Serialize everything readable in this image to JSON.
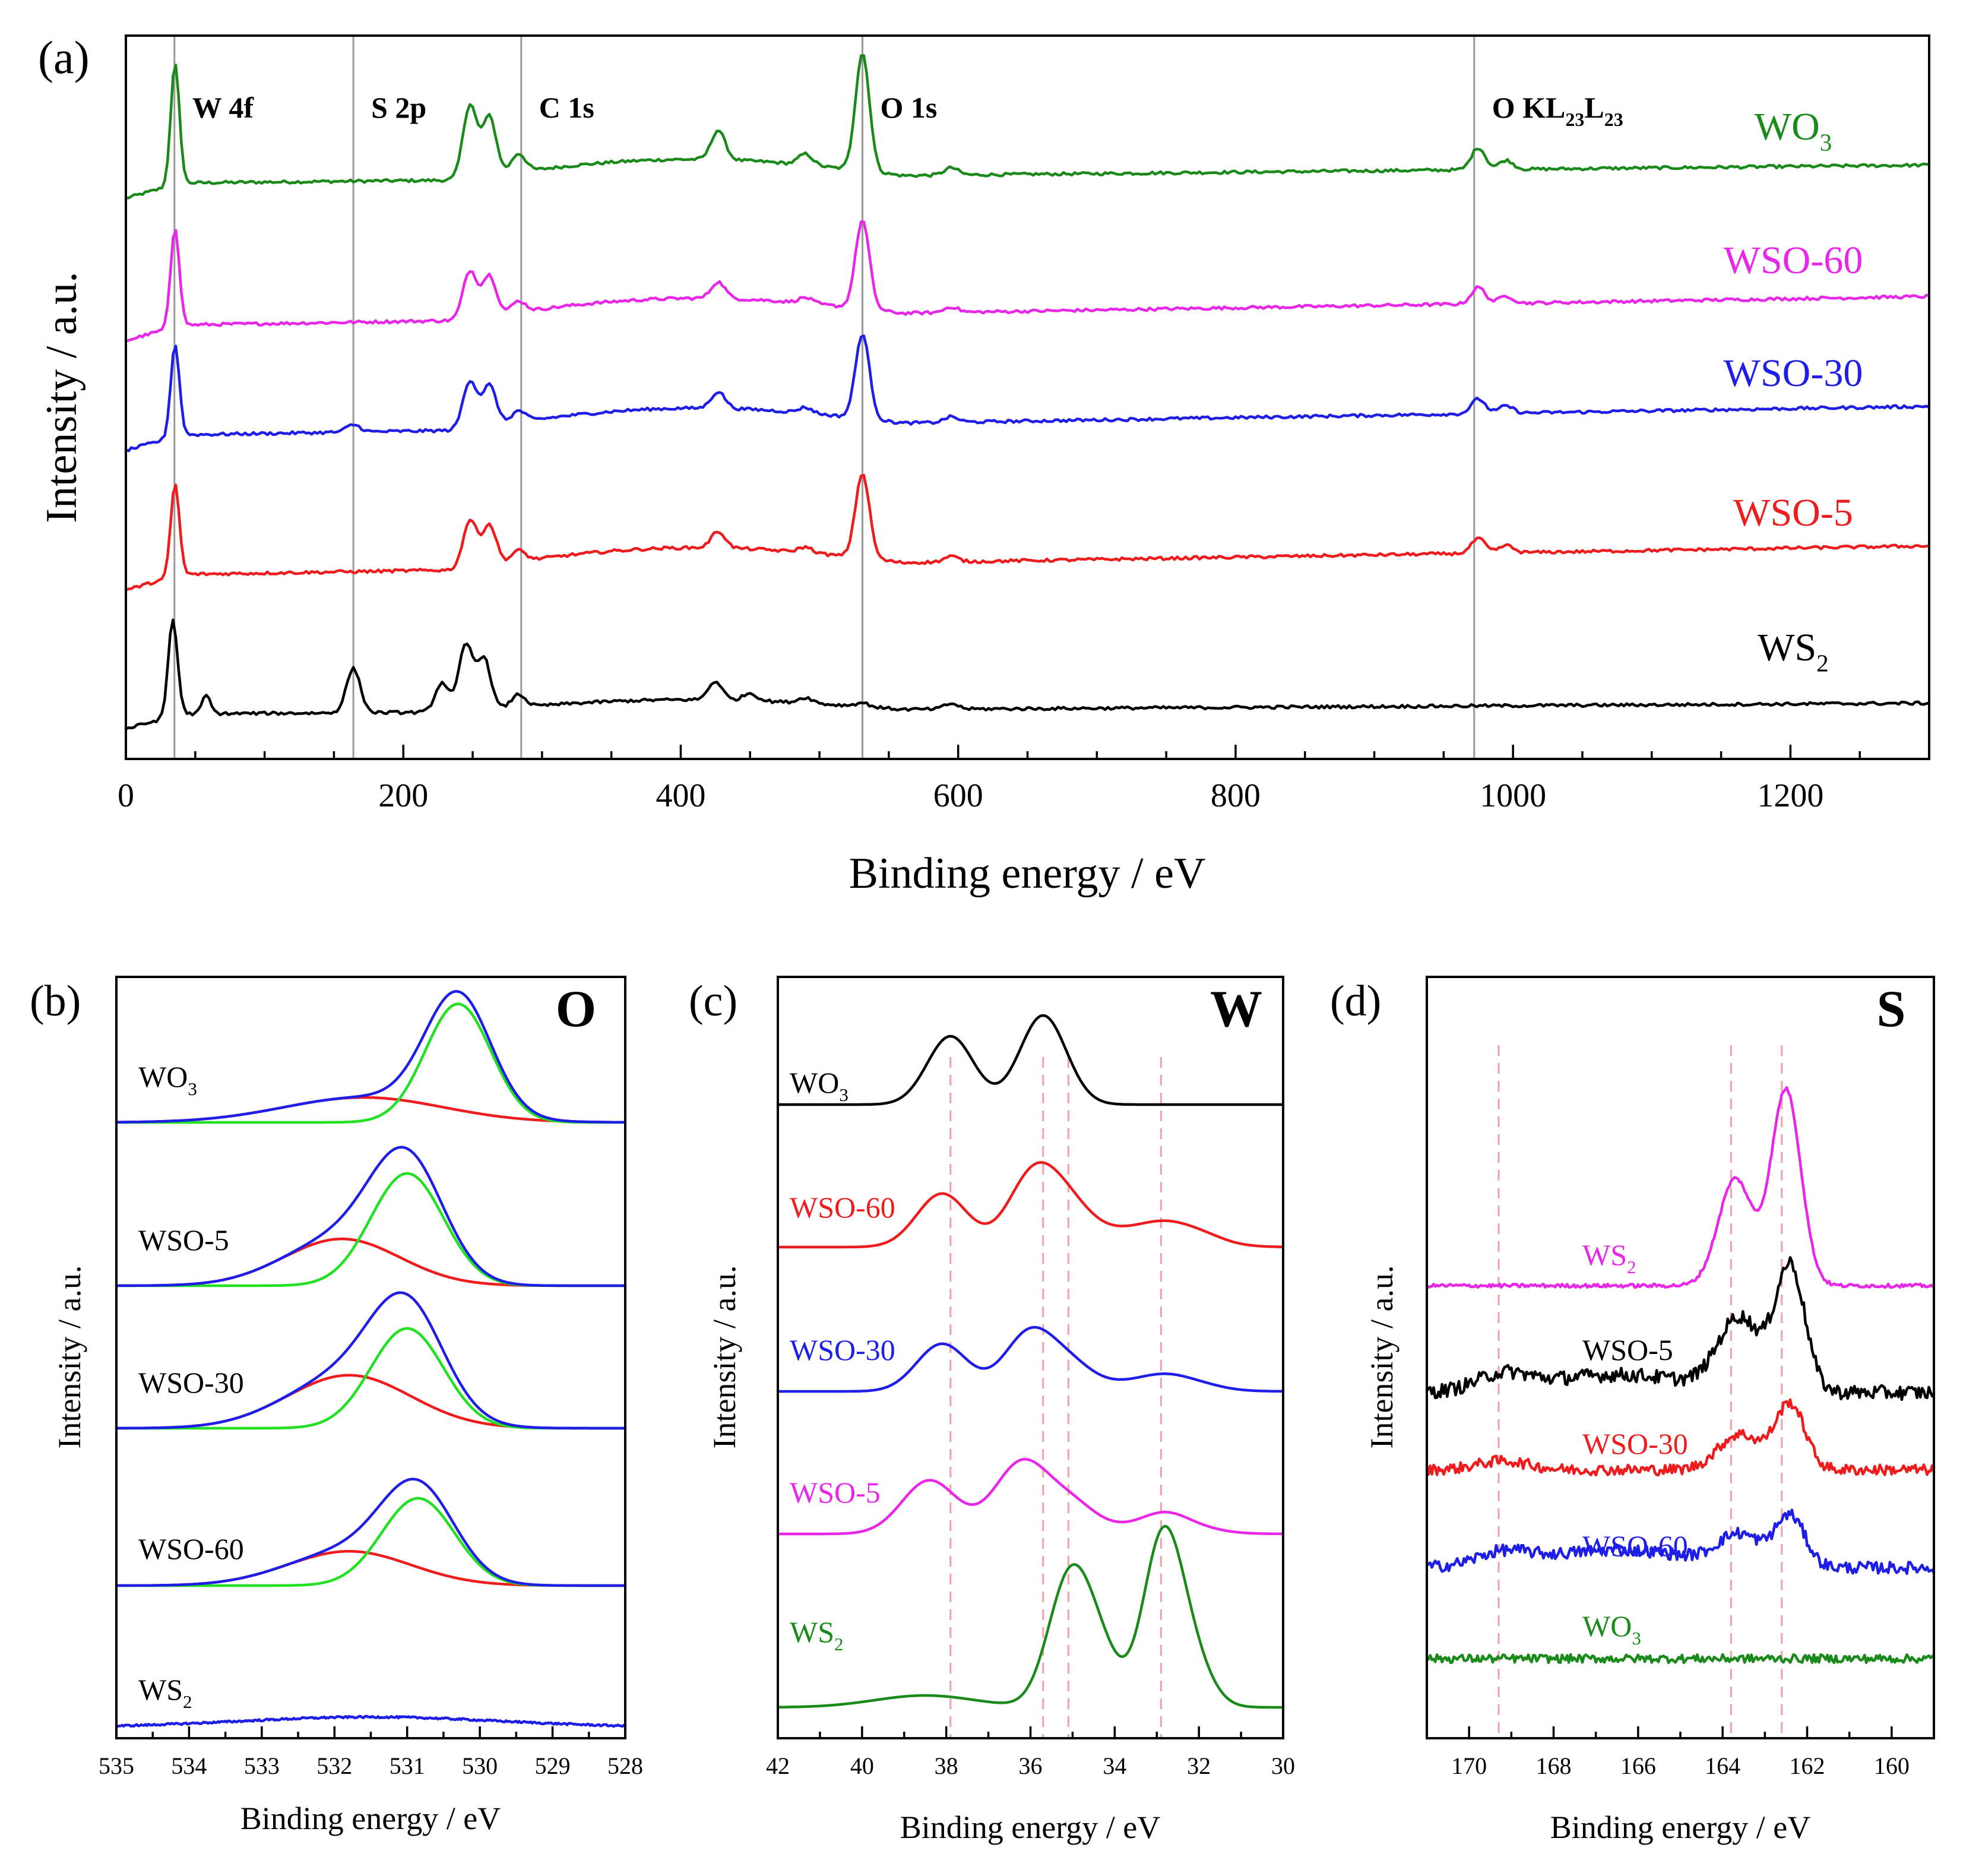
{
  "panels": {
    "a": {
      "label": "(a)",
      "title": "",
      "xlabel": "Binding energy / eV",
      "ylabel": "Intensity / a.u.",
      "element_markers": [
        {
          "x": 35,
          "label": "W 4f"
        },
        {
          "x": 164,
          "label": "S 2p"
        },
        {
          "x": 285,
          "label": "C 1s"
        },
        {
          "x": 531,
          "label": "O 1s"
        },
        {
          "x": 972,
          "label": "O KL",
          "sub1": "23",
          "mid": "L",
          "sub2": "23"
        }
      ]
    },
    "b": {
      "label": "(b)",
      "element": "O",
      "xlabel": "Binding energy / eV",
      "ylabel": "Intensity / a.u."
    },
    "c": {
      "label": "(c)",
      "element": "W",
      "xlabel": "Binding energy / eV",
      "ylabel": "Intensity / a.u."
    },
    "d": {
      "label": "(d)",
      "element": "S",
      "xlabel": "Binding energy / eV",
      "ylabel": "Intensity / a.u."
    }
  },
  "chart_data": [
    {
      "id": "a",
      "type": "line",
      "title": "",
      "xlabel": "Binding energy / eV",
      "ylabel": "Intensity / a.u.",
      "xlim": [
        0,
        1300
      ],
      "xticks": [
        0,
        200,
        400,
        600,
        800,
        1000,
        1200
      ],
      "reference_lines": [
        35,
        164,
        285,
        531,
        972
      ],
      "series": [
        {
          "name": "WO3",
          "label": "WO",
          "sub": "3",
          "color": "#1a8a1a",
          "offset": 4,
          "peaks": [
            [
              35,
              2.6
            ],
            [
              37,
              0.8
            ],
            [
              248,
              2.0
            ],
            [
              262,
              1.6
            ],
            [
              283,
              0.5
            ],
            [
              427,
              0.8
            ],
            [
              490,
              0.3
            ],
            [
              531,
              3.2
            ],
            [
              595,
              0.2
            ],
            [
              975,
              0.6
            ],
            [
              995,
              0.25
            ]
          ],
          "base_start": 0.5,
          "base_end": 1.0
        },
        {
          "name": "WSO-60",
          "label": "WSO-60",
          "sub": "",
          "color": "#e827e8",
          "offset": 3,
          "peaks": [
            [
              35,
              2.2
            ],
            [
              37,
              0.6
            ],
            [
              248,
              1.3
            ],
            [
              262,
              1.1
            ],
            [
              283,
              0.3
            ],
            [
              427,
              0.45
            ],
            [
              490,
              0.15
            ],
            [
              531,
              2.4
            ],
            [
              595,
              0.15
            ],
            [
              975,
              0.45
            ],
            [
              995,
              0.2
            ]
          ],
          "base_start": 0.1,
          "base_end": 0.9
        },
        {
          "name": "WSO-30",
          "label": "WSO-30",
          "sub": "",
          "color": "#1e1ee6",
          "offset": 2,
          "peaks": [
            [
              35,
              2.0
            ],
            [
              37,
              0.6
            ],
            [
              164,
              0.2
            ],
            [
              248,
              1.3
            ],
            [
              262,
              1.1
            ],
            [
              283,
              0.3
            ],
            [
              427,
              0.45
            ],
            [
              490,
              0.15
            ],
            [
              531,
              2.3
            ],
            [
              595,
              0.15
            ],
            [
              975,
              0.4
            ],
            [
              995,
              0.2
            ]
          ],
          "base_start": 0.1,
          "base_end": 0.9
        },
        {
          "name": "WSO-5",
          "label": "WSO-5",
          "sub": "",
          "color": "#ee1c1c",
          "offset": 1,
          "peaks": [
            [
              35,
              2.0
            ],
            [
              37,
              0.6
            ],
            [
              248,
              1.3
            ],
            [
              262,
              1.1
            ],
            [
              283,
              0.3
            ],
            [
              427,
              0.45
            ],
            [
              490,
              0.15
            ],
            [
              531,
              2.3
            ],
            [
              595,
              0.15
            ],
            [
              975,
              0.4
            ],
            [
              995,
              0.2
            ]
          ],
          "base_start": 0.1,
          "base_end": 0.9
        },
        {
          "name": "WS2",
          "label": "WS",
          "sub": "2",
          "color": "#000000",
          "offset": 0,
          "peaks": [
            [
              33,
              2.0
            ],
            [
              36,
              0.9
            ],
            [
              58,
              0.5
            ],
            [
              164,
              1.2
            ],
            [
              228,
              0.8
            ],
            [
              245,
              1.8
            ],
            [
              258,
              1.4
            ],
            [
              283,
              0.35
            ],
            [
              425,
              0.5
            ],
            [
              450,
              0.2
            ],
            [
              490,
              0.15
            ],
            [
              531,
              0.1
            ],
            [
              595,
              0.15
            ]
          ],
          "base_start": 0.2,
          "base_end": 0.5
        }
      ]
    },
    {
      "id": "b",
      "type": "line",
      "title": "O",
      "xlabel": "Binding energy / eV",
      "ylabel": "Intensity / a.u.",
      "xlim": [
        535,
        528
      ],
      "xticks": [
        535,
        534,
        533,
        532,
        531,
        530,
        529,
        528
      ],
      "samples": [
        {
          "name": "WO3",
          "label": "WO",
          "sub": "3",
          "offset": 4,
          "main_center": 530.3,
          "main_height": 1.9,
          "main_width": 0.45,
          "oh_center": 531.6,
          "oh_height": 0.4,
          "oh_width": 1.1
        },
        {
          "name": "WSO-5",
          "label": "WSO-5",
          "sub": "",
          "offset": 3,
          "main_center": 531.0,
          "main_height": 1.8,
          "main_width": 0.5,
          "oh_center": 531.9,
          "oh_height": 0.75,
          "oh_width": 0.8
        },
        {
          "name": "WSO-30",
          "label": "WSO-30",
          "sub": "",
          "offset": 2,
          "main_center": 531.0,
          "main_height": 1.6,
          "main_width": 0.5,
          "oh_center": 531.8,
          "oh_height": 0.85,
          "oh_width": 0.85
        },
        {
          "name": "WSO-60",
          "label": "WSO-60",
          "sub": "",
          "offset": 1,
          "main_center": 530.85,
          "main_height": 1.4,
          "main_width": 0.5,
          "oh_center": 531.8,
          "oh_height": 0.55,
          "oh_width": 0.85
        },
        {
          "name": "WS2",
          "label": "WS",
          "sub": "2",
          "offset": 0,
          "main_center": 531.5,
          "main_height": 0.1,
          "main_width": 1.5,
          "oh_center": 531.5,
          "oh_height": 0,
          "oh_width": 1
        }
      ],
      "component_colors": {
        "envelope": "#1e1ee6",
        "lattice_O": "#22e022",
        "OH": "#ee1c1c"
      }
    },
    {
      "id": "c",
      "type": "line",
      "title": "W",
      "xlabel": "Binding energy / eV",
      "ylabel": "Intensity / a.u.",
      "xlim": [
        42,
        30
      ],
      "xticks": [
        42,
        40,
        38,
        36,
        34,
        32,
        30
      ],
      "reference_lines": [
        37.9,
        35.7,
        35.1,
        32.9
      ],
      "series": [
        {
          "name": "WO3",
          "label": "WO",
          "sub": "3",
          "color": "#000000",
          "offset": 4,
          "peaks": [
            [
              37.9,
              1.15,
              0.55
            ],
            [
              35.7,
              1.5,
              0.55
            ]
          ]
        },
        {
          "name": "WSO-60",
          "label": "WSO-60",
          "sub": "",
          "color": "#ee1c1c",
          "offset": 3,
          "peaks": [
            [
              38.1,
              0.9,
              0.6
            ],
            [
              35.9,
              1.25,
              0.6
            ],
            [
              35.0,
              0.3,
              0.5
            ],
            [
              32.8,
              0.15,
              0.6
            ]
          ],
          "tail_height": 0.3
        },
        {
          "name": "WSO-30",
          "label": "WSO-30",
          "sub": "",
          "color": "#1e1ee6",
          "offset": 2,
          "peaks": [
            [
              38.1,
              0.8,
              0.6
            ],
            [
              36.0,
              1.0,
              0.6
            ],
            [
              35.0,
              0.25,
              0.5
            ],
            [
              32.8,
              0.15,
              0.6
            ]
          ],
          "tail_height": 0.15
        },
        {
          "name": "WSO-5",
          "label": "WSO-5",
          "sub": "",
          "color": "#e827e8",
          "offset": 1,
          "peaks": [
            [
              38.4,
              0.9,
              0.65
            ],
            [
              36.2,
              1.2,
              0.65
            ],
            [
              35.0,
              0.35,
              0.55
            ],
            [
              32.8,
              0.25,
              0.55
            ]
          ],
          "tail_height": 0.12
        },
        {
          "name": "WS2",
          "label": "WS",
          "sub": "2",
          "color": "#1a8a1a",
          "offset": 0,
          "peaks": [
            [
              38.5,
              0.2,
              1.2
            ],
            [
              35.1,
              2.0,
              0.5
            ],
            [
              34.4,
              0.9,
              0.5
            ],
            [
              32.9,
              2.5,
              0.45
            ],
            [
              32.3,
              1.0,
              0.5
            ]
          ]
        }
      ]
    },
    {
      "id": "d",
      "type": "line",
      "title": "S",
      "xlabel": "Binding energy / eV",
      "ylabel": "Intensity / a.u.",
      "xlim": [
        171,
        159
      ],
      "xticks": [
        170,
        168,
        166,
        164,
        162,
        160
      ],
      "reference_lines": [
        169.3,
        163.8,
        162.6
      ],
      "series": [
        {
          "name": "WS2",
          "label": "WS",
          "sub": "2",
          "color": "#e827e8",
          "offset": 4,
          "noise": 0.03,
          "peaks": [
            [
              163.7,
              1.8,
              0.4
            ],
            [
              162.5,
              3.3,
              0.35
            ]
          ]
        },
        {
          "name": "WSO-5",
          "label": "WSO-5",
          "sub": "",
          "color": "#000000",
          "offset": 3,
          "noise": 0.12,
          "peaks": [
            [
              169.2,
              0.25,
              0.6
            ],
            [
              163.6,
              1.2,
              0.5
            ],
            [
              162.4,
              2.1,
              0.35
            ]
          ]
        },
        {
          "name": "WSO-30",
          "label": "WSO-30",
          "sub": "",
          "color": "#ee1c1c",
          "offset": 2,
          "noise": 0.09,
          "peaks": [
            [
              169.2,
              0.15,
              0.6
            ],
            [
              163.6,
              0.6,
              0.5
            ],
            [
              162.4,
              1.1,
              0.35
            ]
          ]
        },
        {
          "name": "WSO-60",
          "label": "WSO-60",
          "sub": "",
          "color": "#1e1ee6",
          "offset": 1,
          "noise": 0.1,
          "peaks": [
            [
              169.2,
              0.2,
              0.6
            ],
            [
              163.6,
              0.5,
              0.5
            ],
            [
              162.4,
              0.85,
              0.35
            ]
          ]
        },
        {
          "name": "WO3",
          "label": "WO",
          "sub": "3",
          "color": "#1a8a1a",
          "offset": 0,
          "noise": 0.07,
          "peaks": []
        }
      ]
    }
  ]
}
